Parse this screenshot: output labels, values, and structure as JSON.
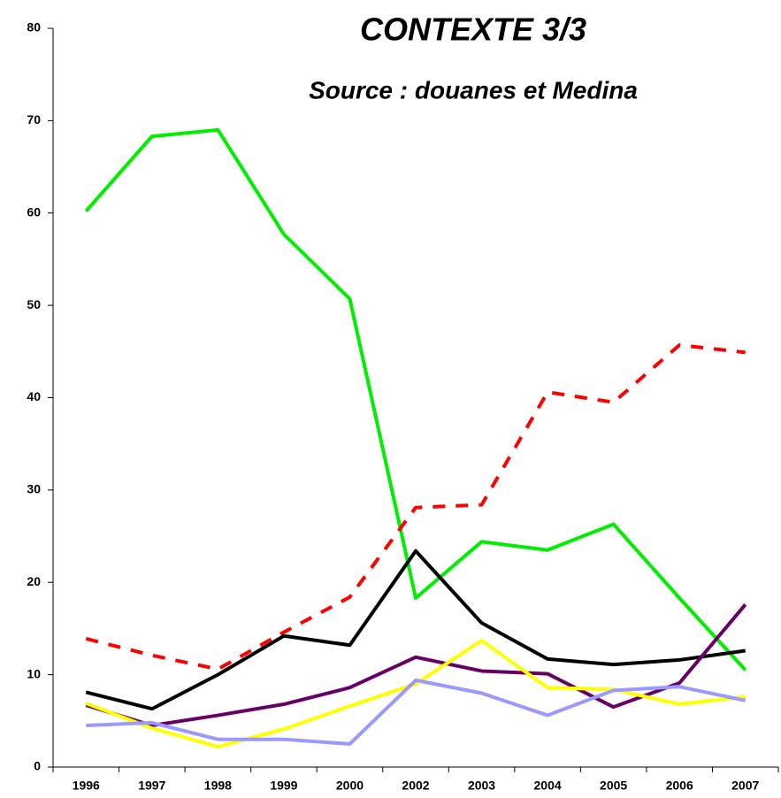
{
  "chart_data": {
    "type": "line",
    "title": "CONTEXTE 3/3",
    "subtitle": "Source : douanes et Medina",
    "categories": [
      "1996",
      "1997",
      "1998",
      "1999",
      "2000",
      "2002",
      "2003",
      "2004",
      "2005",
      "2006",
      "2007"
    ],
    "series": [
      {
        "color": "#00ee00",
        "style": "solid",
        "values": [
          60.2,
          68.3,
          69.0,
          57.7,
          50.7,
          18.3,
          24.4,
          23.5,
          26.3,
          18.3,
          10.5
        ]
      },
      {
        "color": "#ff0000",
        "style": "dashed",
        "values": [
          13.9,
          12.1,
          10.6,
          14.6,
          18.4,
          28.1,
          28.4,
          40.6,
          39.5,
          45.7,
          44.9
        ]
      },
      {
        "color": "#000000",
        "style": "solid",
        "values": [
          8.1,
          6.3,
          10.0,
          14.2,
          13.2,
          23.4,
          15.6,
          11.7,
          11.1,
          11.6,
          12.6
        ]
      },
      {
        "color": "#660066",
        "style": "solid",
        "values": [
          6.7,
          4.5,
          5.6,
          6.8,
          8.6,
          11.9,
          10.4,
          10.1,
          6.5,
          9.1,
          17.6
        ]
      },
      {
        "color": "#ffff00",
        "style": "solid",
        "values": [
          6.9,
          4.2,
          2.2,
          4.1,
          6.6,
          9.0,
          13.7,
          8.6,
          8.4,
          6.8,
          7.6
        ]
      },
      {
        "color": "#9999ff",
        "style": "solid",
        "values": [
          4.5,
          4.8,
          3.0,
          3.0,
          2.5,
          9.4,
          8.0,
          5.6,
          8.3,
          8.7,
          7.2
        ]
      }
    ],
    "ylim": [
      0,
      80
    ],
    "yticks": [
      0,
      10,
      20,
      30,
      40,
      50,
      60,
      70,
      80
    ],
    "grid": false
  }
}
